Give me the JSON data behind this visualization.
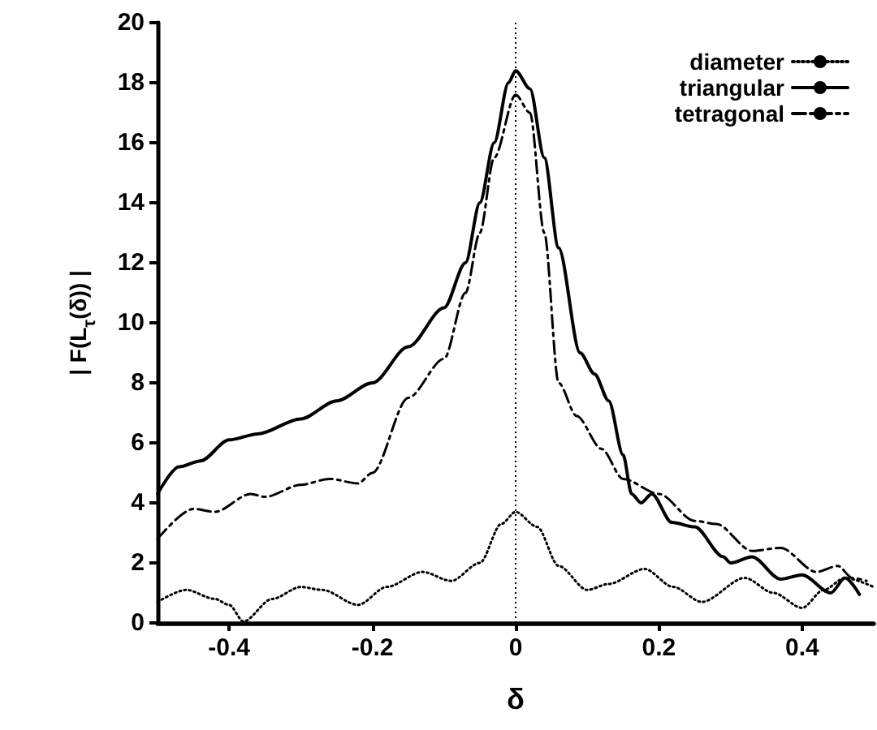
{
  "chart_data": {
    "type": "line",
    "xlabel": "δ",
    "ylabel": "| F(L$_{τ}$(δ)) |",
    "xlim": [
      -0.5,
      0.5
    ],
    "xticks": [
      -0.4,
      -0.2,
      0,
      0.2,
      0.4
    ],
    "ylim": [
      0,
      20
    ],
    "yticks": [
      0,
      2,
      4,
      6,
      8,
      10,
      12,
      14,
      16,
      18,
      20
    ],
    "grid": false,
    "legend": "top right",
    "marker": "none",
    "ref_lines": [
      {
        "axis": "x",
        "value": 0,
        "color": "#000000",
        "line_style": "dotted"
      }
    ],
    "series": [
      {
        "name": "diameter",
        "color": "#000000",
        "line_style": "dotted",
        "x": [
          -0.5,
          -0.46,
          -0.42,
          -0.4,
          -0.38,
          -0.34,
          -0.3,
          -0.27,
          -0.22,
          -0.18,
          -0.13,
          -0.09,
          -0.05,
          -0.02,
          0,
          0.03,
          0.06,
          0.1,
          0.13,
          0.18,
          0.22,
          0.26,
          0.32,
          0.36,
          0.4,
          0.43,
          0.46,
          0.5
        ],
        "values": [
          0.7,
          1.1,
          0.8,
          0.6,
          0.05,
          0.8,
          1.2,
          1.1,
          0.6,
          1.2,
          1.7,
          1.4,
          2.0,
          3.3,
          3.7,
          3.2,
          1.9,
          1.1,
          1.3,
          1.8,
          1.2,
          0.7,
          1.5,
          1.0,
          0.5,
          1.1,
          1.5,
          1.2
        ]
      },
      {
        "name": "triangular",
        "color": "#000000",
        "line_style": "solid",
        "x": [
          -0.5,
          -0.47,
          -0.44,
          -0.4,
          -0.36,
          -0.3,
          -0.25,
          -0.2,
          -0.15,
          -0.1,
          -0.07,
          -0.05,
          -0.03,
          -0.01,
          0,
          0.02,
          0.04,
          0.06,
          0.09,
          0.11,
          0.13,
          0.15,
          0.162,
          0.175,
          0.19,
          0.218,
          0.25,
          0.29,
          0.3,
          0.33,
          0.37,
          0.4,
          0.44,
          0.46,
          0.48
        ],
        "values": [
          4.3,
          5.2,
          5.4,
          6.1,
          6.3,
          6.8,
          7.4,
          8.0,
          9.2,
          10.5,
          12,
          14,
          16,
          18,
          18.4,
          17.8,
          15.5,
          12.5,
          9.0,
          8.3,
          7.4,
          5.6,
          4.3,
          4.0,
          4.3,
          3.35,
          3.2,
          2.2,
          2.0,
          2.2,
          1.46,
          1.6,
          1.0,
          1.5,
          0.95
        ]
      },
      {
        "name": "tetragonal",
        "color": "#000000",
        "line_style": "dashed",
        "x": [
          -0.5,
          -0.45,
          -0.42,
          -0.37,
          -0.35,
          -0.3,
          -0.26,
          -0.22,
          -0.2,
          -0.15,
          -0.1,
          -0.07,
          -0.05,
          -0.03,
          0,
          0.02,
          0.04,
          0.06,
          0.085,
          0.12,
          0.15,
          0.2,
          0.25,
          0.28,
          0.33,
          0.37,
          0.42,
          0.45,
          0.47,
          0.49
        ],
        "values": [
          2.8,
          3.8,
          3.7,
          4.3,
          4.2,
          4.6,
          4.8,
          4.65,
          5.0,
          7.5,
          8.8,
          11,
          13,
          15.5,
          17.6,
          17,
          13,
          8,
          6.9,
          5.8,
          4.8,
          4.3,
          3.4,
          3.3,
          2.4,
          2.5,
          1.7,
          1.9,
          1.5,
          1.4
        ]
      }
    ]
  }
}
